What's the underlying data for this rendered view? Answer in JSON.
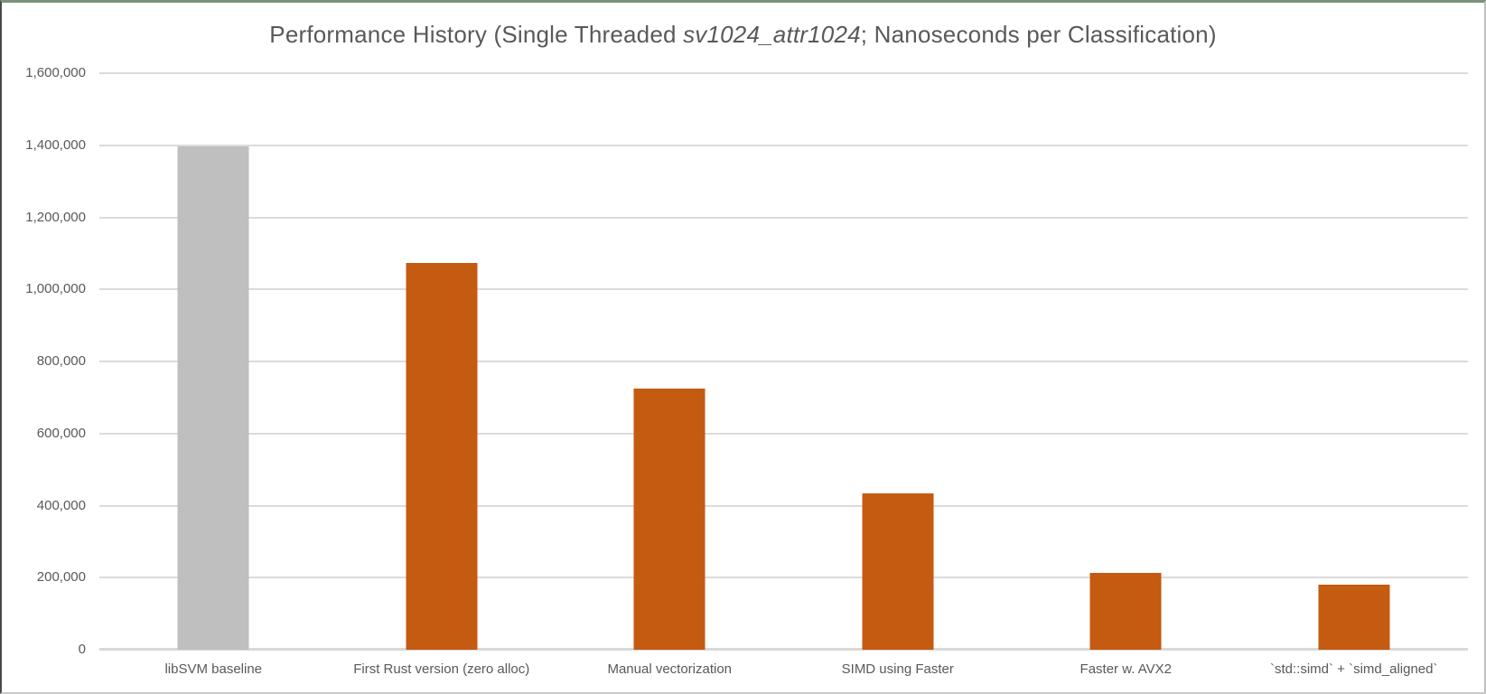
{
  "title": {
    "prefix": "Performance History (Single Threaded ",
    "italic": "sv1024_attr1024",
    "suffix": "; Nanoseconds per Classification)"
  },
  "colors": {
    "bar_default": "#C55A11",
    "bar_baseline": "#BFBFBF",
    "gridline": "#DBDBDB",
    "axis_line": "#D9D9D9",
    "text": "#595959"
  },
  "chart_data": {
    "type": "bar",
    "title": "Performance History (Single Threaded sv1024_attr1024; Nanoseconds per Classification)",
    "categories": [
      "libSVM baseline",
      "First Rust version (zero alloc)",
      "Manual vectorization",
      "SIMD using Faster",
      "Faster w. AVX2",
      "`std::simd` + `simd_aligned`"
    ],
    "values": [
      1398000,
      1073000,
      726000,
      433000,
      214000,
      180000
    ],
    "bar_colors": [
      "#BFBFBF",
      "#C55A11",
      "#C55A11",
      "#C55A11",
      "#C55A11",
      "#C55A11"
    ],
    "xlabel": "",
    "ylabel": "",
    "ylim": [
      0,
      1600000
    ],
    "ytick_values": [
      0,
      200000,
      400000,
      600000,
      800000,
      1000000,
      1200000,
      1400000,
      1600000
    ],
    "ytick_labels": [
      "0",
      "200,000",
      "400,000",
      "600,000",
      "800,000",
      "1,000,000",
      "1,200,000",
      "1,400,000",
      "1,600,000"
    ],
    "grid": true,
    "legend": false
  }
}
